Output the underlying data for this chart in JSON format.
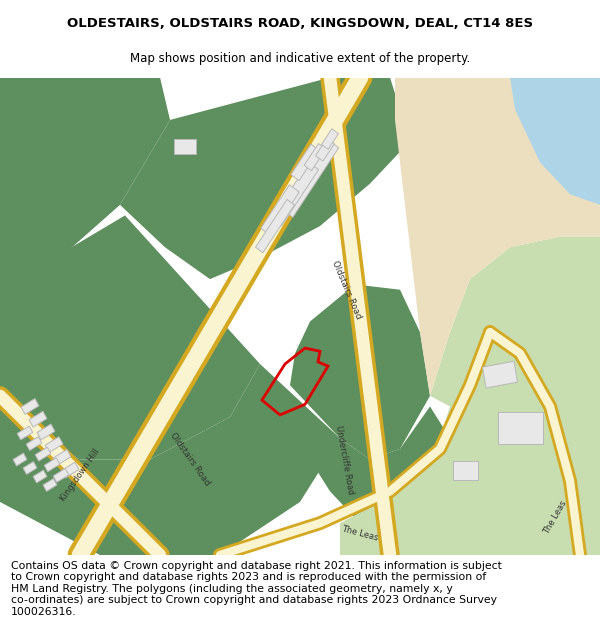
{
  "title": "OLDESTAIRS, OLDSTAIRS ROAD, KINGSDOWN, DEAL, CT14 8ES",
  "subtitle": "Map shows position and indicative extent of the property.",
  "copyright_text": "Contains OS data © Crown copyright and database right 2021. This information is subject\nto Crown copyright and database rights 2023 and is reproduced with the permission of\nHM Land Registry. The polygons (including the associated geometry, namely x, y\nco-ordinates) are subject to Crown copyright and database rights 2023 Ordnance Survey\n100026316.",
  "title_fontsize": 9.5,
  "subtitle_fontsize": 8.5,
  "copyright_fontsize": 7.8,
  "bg_color": "#ffffff",
  "green_dark": "#5e8f5e",
  "green_light": "#c8ddb0",
  "road_fill": "#faf5d0",
  "road_border": "#d4a820",
  "sand_color": "#ecdfc0",
  "water_color": "#aed4e8",
  "building_color": "#e8e8e8",
  "building_border": "#b8b8b8",
  "red_outline": "#dd0000",
  "label_color": "#333333"
}
